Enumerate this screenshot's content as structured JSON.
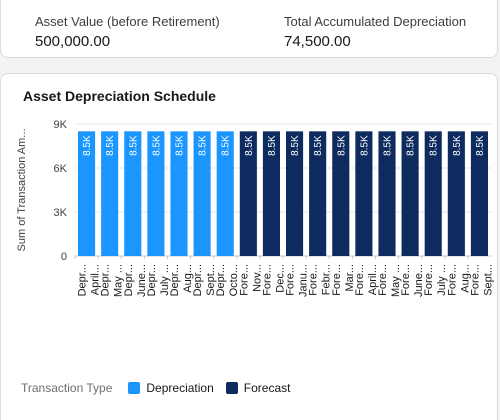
{
  "kpis": {
    "asset_value_label": "Asset Value (before Retirement)",
    "asset_value": "500,000.00",
    "accumulated_label": "Total Accumulated Depreciation",
    "accumulated_value": "74,500.00"
  },
  "chart": {
    "title": "Asset Depreciation Schedule",
    "legend_title": "Transaction Type"
  },
  "chart_data": {
    "type": "bar",
    "title": "Asset Depreciation Schedule",
    "ylabel": "Sum of Transaction Am...",
    "xlabel": "",
    "ylim": [
      0,
      9000
    ],
    "yticks": [
      0,
      3000,
      6000,
      9000
    ],
    "ytick_labels": [
      "0",
      "3K",
      "6K",
      "9K"
    ],
    "grid": true,
    "legend_placement": "bottom-left",
    "series": [
      {
        "name": "Depreciation",
        "color": "#1b96ff"
      },
      {
        "name": "Forecast",
        "color": "#0d2b5e"
      }
    ],
    "bars": [
      {
        "label": "April... Depr...",
        "month": "April...",
        "type_label": "Depr...",
        "series": "Depreciation",
        "value": 8500,
        "value_label": "8.5K"
      },
      {
        "label": "May ... Depr...",
        "month": "May ...",
        "type_label": "Depr...",
        "series": "Depreciation",
        "value": 8500,
        "value_label": "8.5K"
      },
      {
        "label": "June... Depr...",
        "month": "June...",
        "type_label": "Depr...",
        "series": "Depreciation",
        "value": 8500,
        "value_label": "8.5K"
      },
      {
        "label": "July ... Depr...",
        "month": "July ...",
        "type_label": "Depr...",
        "series": "Depreciation",
        "value": 8500,
        "value_label": "8.5K"
      },
      {
        "label": "Aug... Depr...",
        "month": "Aug...",
        "type_label": "Depr...",
        "series": "Depreciation",
        "value": 8500,
        "value_label": "8.5K"
      },
      {
        "label": "Sept... Depr...",
        "month": "Sept...",
        "type_label": "Depr...",
        "series": "Depreciation",
        "value": 8500,
        "value_label": "8.5K"
      },
      {
        "label": "Octo... Depr...",
        "month": "Octo...",
        "type_label": "Depr...",
        "series": "Depreciation",
        "value": 8500,
        "value_label": "8.5K"
      },
      {
        "label": "Nov... Fore...",
        "month": "Nov...",
        "type_label": "Fore...",
        "series": "Forecast",
        "value": 8500,
        "value_label": "8.5K"
      },
      {
        "label": "Dec... Fore...",
        "month": "Dec...",
        "type_label": "Fore...",
        "series": "Forecast",
        "value": 8500,
        "value_label": "8.5K"
      },
      {
        "label": "Janu... Fore...",
        "month": "Janu...",
        "type_label": "Fore...",
        "series": "Forecast",
        "value": 8500,
        "value_label": "8.5K"
      },
      {
        "label": "Febr... Fore...",
        "month": "Febr...",
        "type_label": "Fore...",
        "series": "Forecast",
        "value": 8500,
        "value_label": "8.5K"
      },
      {
        "label": "Mar... Fore...",
        "month": "Mar...",
        "type_label": "Fore...",
        "series": "Forecast",
        "value": 8500,
        "value_label": "8.5K"
      },
      {
        "label": "April... Fore...",
        "month": "April...",
        "type_label": "Fore...",
        "series": "Forecast",
        "value": 8500,
        "value_label": "8.5K"
      },
      {
        "label": "May ... Fore...",
        "month": "May ...",
        "type_label": "Fore...",
        "series": "Forecast",
        "value": 8500,
        "value_label": "8.5K"
      },
      {
        "label": "June... Fore...",
        "month": "June...",
        "type_label": "Fore...",
        "series": "Forecast",
        "value": 8500,
        "value_label": "8.5K"
      },
      {
        "label": "July ... Fore...",
        "month": "July ...",
        "type_label": "Fore...",
        "series": "Forecast",
        "value": 8500,
        "value_label": "8.5K"
      },
      {
        "label": "Aug... Fore...",
        "month": "Aug...",
        "type_label": "Fore...",
        "series": "Forecast",
        "value": 8500,
        "value_label": "8.5K"
      },
      {
        "label": "Sept... Fore...",
        "month": "Sept...",
        "type_label": "Fore...",
        "series": "Forecast",
        "value": 8500,
        "value_label": "8.5K"
      }
    ]
  }
}
